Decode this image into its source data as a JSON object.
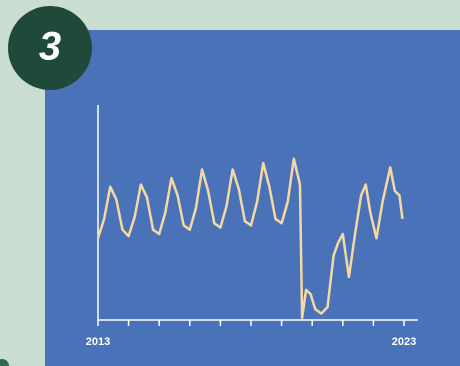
{
  "badge": "3",
  "chart_data": {
    "type": "line",
    "color": "#f6d9a2",
    "xlim": [
      2013,
      2023
    ],
    "ylim": [
      0,
      100
    ],
    "xticks": [
      2013,
      2014,
      2015,
      2016,
      2017,
      2018,
      2019,
      2020,
      2021,
      2022,
      2023
    ],
    "x": [
      2013,
      2013.2,
      2013.4,
      2013.6,
      2013.8,
      2014,
      2014.2,
      2014.4,
      2014.6,
      2014.8,
      2015,
      2015.2,
      2015.4,
      2015.6,
      2015.8,
      2016,
      2016.2,
      2016.4,
      2016.6,
      2016.8,
      2017,
      2017.2,
      2017.4,
      2017.6,
      2017.8,
      2018,
      2018.2,
      2018.4,
      2018.6,
      2018.8,
      2019,
      2019.2,
      2019.4,
      2019.6,
      2019.67,
      2019.8,
      2019.95,
      2020.1,
      2020.3,
      2020.5,
      2020.7,
      2020.85,
      2021,
      2021.2,
      2021.4,
      2021.6,
      2021.75,
      2021.9,
      2022.1,
      2022.3,
      2022.55,
      2022.7,
      2022.85,
      2022.95
    ],
    "values": [
      38,
      47,
      62,
      56,
      42,
      39,
      48,
      63,
      57,
      42,
      40,
      50,
      66,
      58,
      44,
      42,
      52,
      70,
      60,
      45,
      43,
      53,
      70,
      61,
      46,
      44,
      55,
      73,
      62,
      47,
      45,
      55,
      75,
      63,
      1,
      14,
      12,
      5,
      3,
      6,
      30,
      36,
      40,
      20,
      40,
      58,
      63,
      50,
      38,
      55,
      71,
      60,
      58,
      47
    ]
  }
}
